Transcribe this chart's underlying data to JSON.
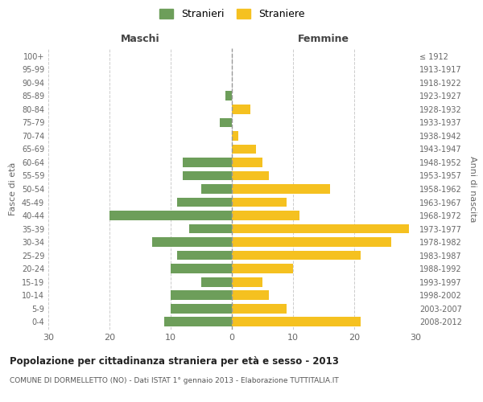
{
  "age_groups": [
    "0-4",
    "5-9",
    "10-14",
    "15-19",
    "20-24",
    "25-29",
    "30-34",
    "35-39",
    "40-44",
    "45-49",
    "50-54",
    "55-59",
    "60-64",
    "65-69",
    "70-74",
    "75-79",
    "80-84",
    "85-89",
    "90-94",
    "95-99",
    "100+"
  ],
  "birth_years": [
    "2008-2012",
    "2003-2007",
    "1998-2002",
    "1993-1997",
    "1988-1992",
    "1983-1987",
    "1978-1982",
    "1973-1977",
    "1968-1972",
    "1963-1967",
    "1958-1962",
    "1953-1957",
    "1948-1952",
    "1943-1947",
    "1938-1942",
    "1933-1937",
    "1928-1932",
    "1923-1927",
    "1918-1922",
    "1913-1917",
    "≤ 1912"
  ],
  "maschi": [
    11,
    10,
    10,
    5,
    10,
    9,
    13,
    7,
    20,
    9,
    5,
    8,
    8,
    0,
    0,
    2,
    0,
    1,
    0,
    0,
    0
  ],
  "femmine": [
    21,
    9,
    6,
    5,
    10,
    21,
    26,
    29,
    11,
    9,
    16,
    6,
    5,
    4,
    1,
    0,
    3,
    0,
    0,
    0,
    0
  ],
  "color_maschi": "#6d9e5a",
  "color_femmine": "#f5c120",
  "title": "Popolazione per cittadinanza straniera per età e sesso - 2013",
  "subtitle": "COMUNE DI DORMELLETTO (NO) - Dati ISTAT 1° gennaio 2013 - Elaborazione TUTTITALIA.IT",
  "xlabel_left": "Maschi",
  "xlabel_right": "Femmine",
  "ylabel_left": "Fasce di età",
  "ylabel_right": "Anni di nascita",
  "xlim": 30,
  "legend_stranieri": "Stranieri",
  "legend_straniere": "Straniere",
  "background_color": "#ffffff",
  "grid_color": "#cccccc"
}
